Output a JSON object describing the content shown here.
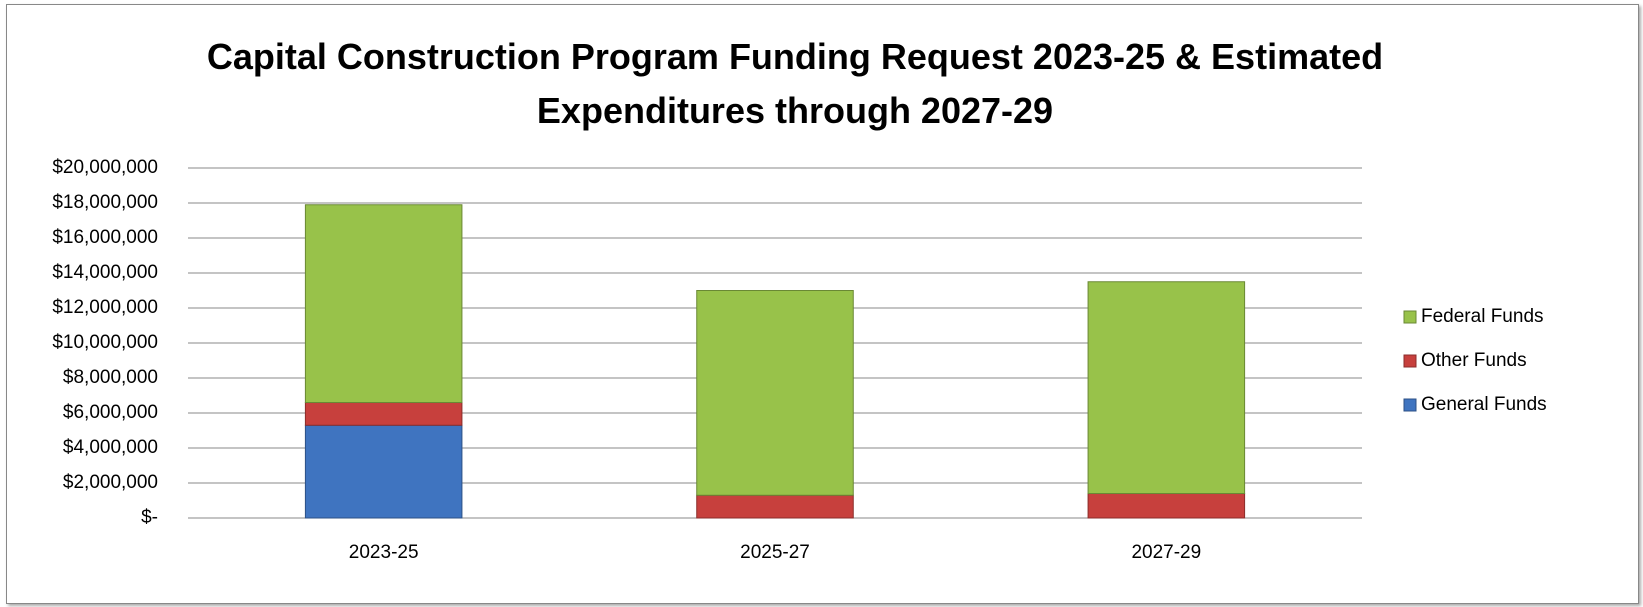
{
  "chart_data": {
    "type": "stacked_bar",
    "title": "Capital Construction Program Funding Request 2023-25 & Estimated Expenditures through 2027-29",
    "categories": [
      "2023-25",
      "2025-27",
      "2027-29"
    ],
    "series": [
      {
        "name": "General Funds",
        "color": "#3f74c0",
        "values": [
          5300000,
          0,
          0
        ]
      },
      {
        "name": "Other Funds",
        "color": "#c7403d",
        "values": [
          1300000,
          1300000,
          1400000
        ]
      },
      {
        "name": "Federal Funds",
        "color": "#98c24a",
        "values": [
          11300000,
          11700000,
          12100000
        ]
      }
    ],
    "ylim": [
      0,
      20000000
    ],
    "yticks": [
      {
        "value": 0,
        "label": "$-"
      },
      {
        "value": 2000000,
        "label": "$2,000,000"
      },
      {
        "value": 4000000,
        "label": "$4,000,000"
      },
      {
        "value": 6000000,
        "label": "$6,000,000"
      },
      {
        "value": 8000000,
        "label": "$8,000,000"
      },
      {
        "value": 10000000,
        "label": "$10,000,000"
      },
      {
        "value": 12000000,
        "label": "$12,000,000"
      },
      {
        "value": 14000000,
        "label": "$14,000,000"
      },
      {
        "value": 16000000,
        "label": "$16,000,000"
      },
      {
        "value": 18000000,
        "label": "$18,000,000"
      },
      {
        "value": 20000000,
        "label": "$20,000,000"
      }
    ],
    "grid": true,
    "legend": "right"
  }
}
